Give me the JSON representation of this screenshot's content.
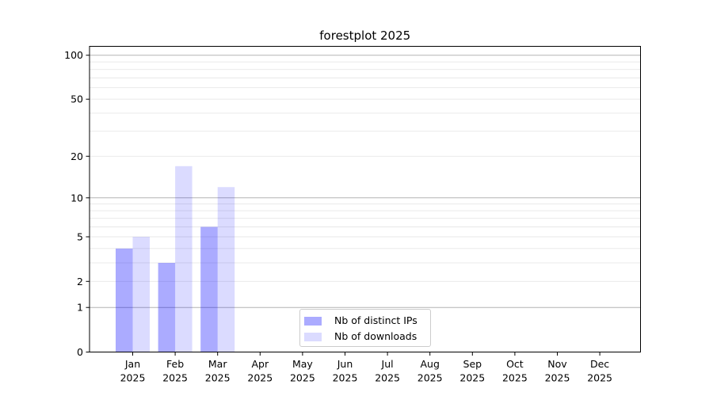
{
  "figure": {
    "title": "forestplot 2025",
    "background": "#ffffff"
  },
  "legend": {
    "items": [
      {
        "label": "Nb of distinct IPs",
        "color": "rgba(0,0,255,0.33)"
      },
      {
        "label": "Nb of downloads",
        "color": "rgba(0,0,255,0.14)"
      }
    ]
  },
  "chart_data": {
    "type": "bar",
    "title": "forestplot 2025",
    "categories": [
      "Jan 2025",
      "Feb 2025",
      "Mar 2025",
      "Apr 2025",
      "May 2025",
      "Jun 2025",
      "Jul 2025",
      "Aug 2025",
      "Sep 2025",
      "Oct 2025",
      "Nov 2025",
      "Dec 2025"
    ],
    "series": [
      {
        "name": "Nb of distinct IPs",
        "color": "rgba(0,0,255,0.33)",
        "values": [
          4,
          3,
          6,
          0,
          0,
          0,
          0,
          0,
          0,
          0,
          0,
          0
        ]
      },
      {
        "name": "Nb of downloads",
        "color": "rgba(0,0,255,0.14)",
        "values": [
          5,
          17,
          12,
          0,
          0,
          0,
          0,
          0,
          0,
          0,
          0,
          0
        ]
      }
    ],
    "xlabel": "",
    "ylabel": "",
    "yscale": "log1p",
    "ylim": [
      0,
      115
    ],
    "ytick_values": [
      0,
      1,
      2,
      5,
      10,
      20,
      50,
      100
    ],
    "ytick_labels": [
      "0",
      "1",
      "2",
      "5",
      "10",
      "20",
      "50",
      "100"
    ],
    "major_grid_values": [
      1,
      10,
      100
    ],
    "minor_grid_values": [
      2,
      3,
      4,
      5,
      6,
      7,
      8,
      9,
      20,
      30,
      40,
      50,
      60,
      70,
      80,
      90
    ],
    "grid": "horizontal",
    "legend_position": "lower center",
    "colors": {
      "major_grid": "#b3b3b3",
      "minor_grid": "#e7e7e7",
      "axis": "#000000"
    }
  }
}
